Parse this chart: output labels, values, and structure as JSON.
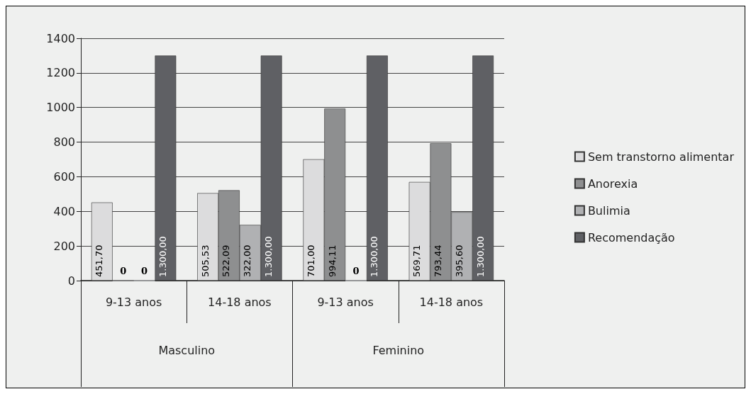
{
  "chart_data": {
    "type": "bar",
    "categories": [
      "9-13 anos",
      "14-18 anos",
      "9-13 anos",
      "14-18 anos"
    ],
    "annotations": [
      "Masculino",
      "Feminino"
    ],
    "series": [
      {
        "name": "Sem transtorno alimentar",
        "color": "#dcdcdd",
        "values": [
          451.7,
          505.53,
          701,
          569.71
        ],
        "value_labels": [
          "451,70",
          "505,53",
          "701,00",
          "569,71"
        ]
      },
      {
        "name": "Anorexia",
        "color": "#8e8f90",
        "values": [
          0,
          522.09,
          994.11,
          793.44
        ],
        "value_labels": [
          "0",
          "522,09",
          "994,11",
          "793,44"
        ]
      },
      {
        "name": "Bulimia",
        "color": "#b0b1b3",
        "values": [
          0,
          322,
          0,
          395.6
        ],
        "value_labels": [
          "0",
          "322,00",
          "0",
          "395,60"
        ]
      },
      {
        "name": "Recomendação",
        "color": "#5f6064",
        "values": [
          1300,
          1300,
          1300,
          1300
        ],
        "value_labels": [
          "1.300,00",
          "1.300,00",
          "1.300,00",
          "1.300,00"
        ]
      }
    ],
    "ylim": [
      0,
      1400
    ],
    "yticks": [
      0,
      200,
      400,
      600,
      800,
      1000,
      1200,
      1400
    ],
    "grid": "y",
    "legend": "right"
  }
}
